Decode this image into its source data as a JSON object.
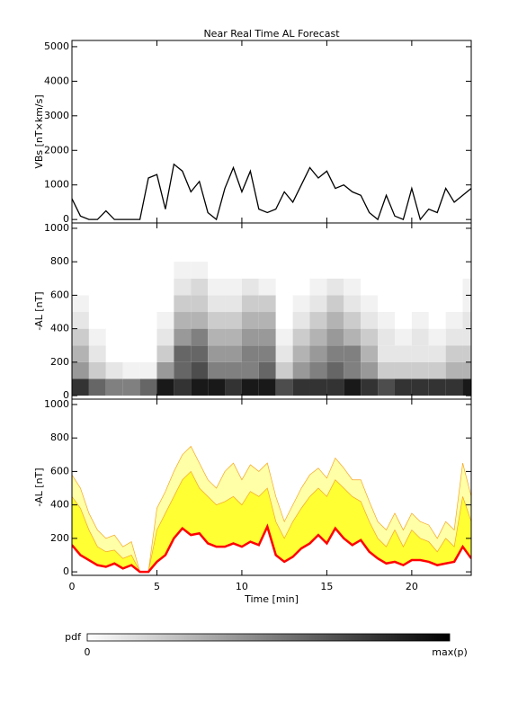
{
  "chart_data": [
    {
      "type": "line",
      "title": "Near Real Time AL Forecast",
      "ylabel": "VBs [nT×km/s]",
      "x": [
        0,
        0.5,
        1,
        1.5,
        2,
        2.5,
        3,
        3.5,
        4,
        4.5,
        5,
        5.5,
        6,
        6.5,
        7,
        7.5,
        8,
        8.5,
        9,
        9.5,
        10,
        10.5,
        11,
        11.5,
        12,
        12.5,
        13,
        13.5,
        14,
        14.5,
        15,
        15.5,
        16,
        16.5,
        17,
        17.5,
        18,
        18.5,
        19,
        19.5,
        20,
        20.5,
        21,
        21.5,
        22,
        22.5,
        23,
        23.5
      ],
      "series": [
        {
          "color": "#000000",
          "values": [
            600,
            100,
            0,
            0,
            250,
            0,
            0,
            0,
            0,
            1200,
            1300,
            300,
            1600,
            1400,
            800,
            1100,
            200,
            0,
            900,
            1500,
            800,
            1400,
            300,
            200,
            300,
            800,
            500,
            1000,
            1500,
            1200,
            1400,
            900,
            1000,
            800,
            700,
            200,
            0,
            700,
            100,
            0,
            900,
            0,
            300,
            200,
            900,
            500,
            700,
            900
          ]
        }
      ],
      "xlim": [
        0,
        23.5
      ],
      "xticks": [
        0,
        5,
        10,
        15,
        20
      ],
      "ylim": [
        -100,
        5180
      ],
      "yticks": [
        0,
        1000,
        2000,
        3000,
        4000,
        5000
      ]
    },
    {
      "type": "heatmap",
      "ylabel": "-AL [nT]",
      "x": [
        0.5,
        1.5,
        2.5,
        3.5,
        4.5,
        5.5,
        6.5,
        7.5,
        8.5,
        9.5,
        10.5,
        11.5,
        12.5,
        13.5,
        14.5,
        15.5,
        16.5,
        17.5,
        18.5,
        19.5,
        20.5,
        21.5,
        22.5,
        23.5
      ],
      "y": [
        50,
        150,
        250,
        350,
        450,
        550,
        650,
        750
      ],
      "z": [
        [
          0.8,
          0.6,
          0.5,
          0.5,
          0.6,
          0.9,
          0.8,
          0.9,
          0.9,
          0.8,
          0.9,
          0.9,
          0.7,
          0.8,
          0.8,
          0.8,
          0.9,
          0.8,
          0.7,
          0.8,
          0.8,
          0.8,
          0.8,
          0.9
        ],
        [
          0.4,
          0.2,
          0.1,
          0.05,
          0.05,
          0.4,
          0.6,
          0.7,
          0.5,
          0.5,
          0.5,
          0.6,
          0.2,
          0.4,
          0.5,
          0.6,
          0.5,
          0.4,
          0.2,
          0.2,
          0.2,
          0.2,
          0.3,
          0.3
        ],
        [
          0.3,
          0.1,
          0,
          0,
          0,
          0.2,
          0.6,
          0.6,
          0.4,
          0.4,
          0.5,
          0.5,
          0.1,
          0.3,
          0.4,
          0.5,
          0.5,
          0.3,
          0.1,
          0.1,
          0.1,
          0.1,
          0.2,
          0.2
        ],
        [
          0.2,
          0.05,
          0,
          0,
          0,
          0.1,
          0.4,
          0.5,
          0.3,
          0.3,
          0.4,
          0.4,
          0.05,
          0.2,
          0.3,
          0.4,
          0.3,
          0.2,
          0.1,
          0.05,
          0.1,
          0.05,
          0.1,
          0.1
        ],
        [
          0.1,
          0,
          0,
          0,
          0,
          0.05,
          0.3,
          0.3,
          0.2,
          0.2,
          0.3,
          0.3,
          0,
          0.1,
          0.2,
          0.3,
          0.2,
          0.1,
          0.05,
          0,
          0.05,
          0,
          0.05,
          0.1
        ],
        [
          0.05,
          0,
          0,
          0,
          0,
          0,
          0.2,
          0.2,
          0.1,
          0.1,
          0.2,
          0.2,
          0,
          0.05,
          0.1,
          0.2,
          0.1,
          0.05,
          0,
          0,
          0,
          0,
          0,
          0.05
        ],
        [
          0,
          0,
          0,
          0,
          0,
          0,
          0.1,
          0.15,
          0.05,
          0.05,
          0.1,
          0.05,
          0,
          0,
          0.05,
          0.1,
          0.05,
          0,
          0,
          0,
          0,
          0,
          0,
          0.05
        ],
        [
          0,
          0,
          0,
          0,
          0,
          0,
          0.05,
          0.05,
          0,
          0,
          0,
          0,
          0,
          0,
          0,
          0,
          0,
          0,
          0,
          0,
          0,
          0,
          0,
          0
        ]
      ],
      "xlim": [
        0,
        23.5
      ],
      "xticks": [
        0,
        5,
        10,
        15,
        20
      ],
      "ylim": [
        -21,
        1032
      ],
      "yticks": [
        0,
        200,
        400,
        600,
        800,
        1000
      ]
    },
    {
      "type": "band",
      "ylabel": "-AL [nT]",
      "xlabel": "Time [min]",
      "x": [
        0,
        0.5,
        1,
        1.5,
        2,
        2.5,
        3,
        3.5,
        4,
        4.5,
        5,
        5.5,
        6,
        6.5,
        7,
        7.5,
        8,
        8.5,
        9,
        9.5,
        10,
        10.5,
        11,
        11.5,
        12,
        12.5,
        13,
        13.5,
        14,
        14.5,
        15,
        15.5,
        16,
        16.5,
        17,
        17.5,
        18,
        18.5,
        19,
        19.5,
        20,
        20.5,
        21,
        21.5,
        22,
        22.5,
        23,
        23.5
      ],
      "series": [
        {
          "color": "#ff0000",
          "values": [
            160,
            100,
            70,
            40,
            30,
            50,
            20,
            40,
            0,
            0,
            60,
            100,
            200,
            260,
            220,
            230,
            170,
            150,
            150,
            170,
            150,
            180,
            160,
            270,
            100,
            60,
            90,
            140,
            170,
            220,
            170,
            260,
            200,
            160,
            190,
            120,
            80,
            50,
            60,
            40,
            70,
            70,
            60,
            40,
            50,
            60,
            150,
            80
          ]
        },
        {
          "color": "#ffff33",
          "values": [
            450,
            380,
            250,
            150,
            120,
            130,
            80,
            100,
            0,
            0,
            250,
            350,
            450,
            550,
            600,
            500,
            450,
            400,
            420,
            450,
            400,
            480,
            450,
            500,
            300,
            200,
            300,
            380,
            450,
            500,
            450,
            550,
            500,
            450,
            420,
            300,
            200,
            150,
            250,
            150,
            250,
            200,
            180,
            120,
            200,
            150,
            450,
            300
          ]
        },
        {
          "color": "#ffffa8",
          "line_color": "#f5a623",
          "values": [
            580,
            500,
            350,
            250,
            200,
            220,
            150,
            180,
            0,
            0,
            380,
            480,
            600,
            700,
            750,
            650,
            550,
            500,
            600,
            650,
            550,
            640,
            600,
            650,
            450,
            300,
            400,
            500,
            580,
            620,
            560,
            680,
            620,
            550,
            550,
            420,
            300,
            250,
            350,
            250,
            350,
            300,
            280,
            200,
            300,
            250,
            650,
            450
          ]
        }
      ],
      "xlim": [
        0,
        23.5
      ],
      "xticks": [
        0,
        5,
        10,
        15,
        20
      ],
      "ylim": [
        -21,
        1032
      ],
      "yticks": [
        0,
        200,
        400,
        600,
        800,
        1000
      ]
    }
  ],
  "colorbar": {
    "label": "pdf",
    "min_label": "0",
    "max_label": "max(p)"
  }
}
